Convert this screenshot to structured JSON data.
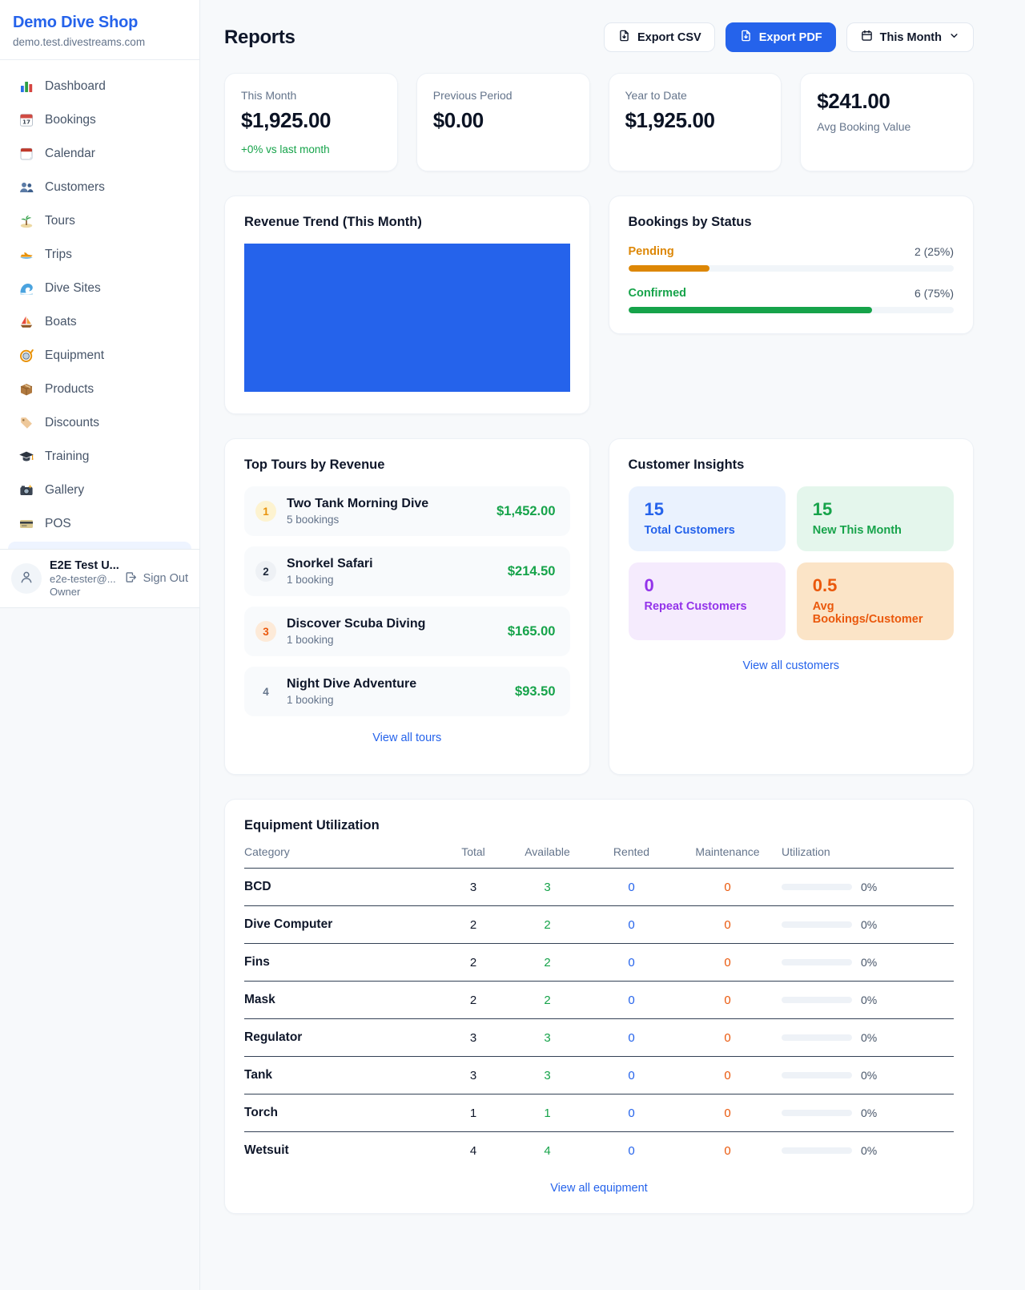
{
  "colors": {
    "brand_accent": "#2563eb",
    "chart_bar_blue": "#2563eb",
    "pending_orange": "#dd8706",
    "confirmed_green": "#16a34a",
    "revenue_green": "#16a34a",
    "link_blue": "#2563eb"
  },
  "sidebar": {
    "brand": "Demo Dive Shop",
    "domain": "demo.test.divestreams.com",
    "items": [
      {
        "label": "Dashboard",
        "icon": "bar-chart"
      },
      {
        "label": "Bookings",
        "icon": "calendar-date"
      },
      {
        "label": "Calendar",
        "icon": "calendar-pad"
      },
      {
        "label": "Customers",
        "icon": "users"
      },
      {
        "label": "Tours",
        "icon": "island"
      },
      {
        "label": "Trips",
        "icon": "speedboat"
      },
      {
        "label": "Dive Sites",
        "icon": "wave"
      },
      {
        "label": "Boats",
        "icon": "sailboat"
      },
      {
        "label": "Equipment",
        "icon": "dive-mask"
      },
      {
        "label": "Products",
        "icon": "box"
      },
      {
        "label": "Discounts",
        "icon": "tag"
      },
      {
        "label": "Training",
        "icon": "grad-cap"
      },
      {
        "label": "Gallery",
        "icon": "camera"
      },
      {
        "label": "POS",
        "icon": "credit-card"
      }
    ],
    "user": {
      "name": "E2E Test U...",
      "email": "e2e-tester@...",
      "role": "Owner",
      "signout_label": "Sign Out"
    }
  },
  "header": {
    "title": "Reports",
    "export_csv_label": "Export CSV",
    "export_pdf_label": "Export PDF",
    "period_label": "This Month"
  },
  "stats": [
    {
      "label": "This Month",
      "value": "$1,925.00",
      "note": "+0% vs last month",
      "value_first": false
    },
    {
      "label": "Previous Period",
      "value": "$0.00",
      "note": "",
      "value_first": false
    },
    {
      "label": "Year to Date",
      "value": "$1,925.00",
      "note": "",
      "value_first": false
    },
    {
      "label": "Avg Booking Value",
      "value": "$241.00",
      "note": "",
      "value_first": true
    }
  ],
  "revenue_trend": {
    "title": "Revenue Trend (This Month)"
  },
  "bookings_by_status": {
    "title": "Bookings by Status",
    "rows": [
      {
        "label": "Pending",
        "count": "2 (25%)",
        "pct": 25,
        "color": "#dd8706"
      },
      {
        "label": "Confirmed",
        "count": "6 (75%)",
        "pct": 75,
        "color": "#16a34a"
      }
    ]
  },
  "top_tours": {
    "title": "Top Tours by Revenue",
    "link": "View all tours",
    "items": [
      {
        "rank": "1",
        "name": "Two Tank Morning Dive",
        "bookings": "5 bookings",
        "amount": "$1,452.00"
      },
      {
        "rank": "2",
        "name": "Snorkel Safari",
        "bookings": "1 booking",
        "amount": "$214.50"
      },
      {
        "rank": "3",
        "name": "Discover Scuba Diving",
        "bookings": "1 booking",
        "amount": "$165.00"
      },
      {
        "rank": "4",
        "name": "Night Dive Adventure",
        "bookings": "1 booking",
        "amount": "$93.50"
      }
    ]
  },
  "customer_insights": {
    "title": "Customer Insights",
    "link": "View all customers",
    "boxes": [
      {
        "value": "15",
        "label": "Total Customers",
        "scheme": "blue"
      },
      {
        "value": "15",
        "label": "New This Month",
        "scheme": "green"
      },
      {
        "value": "0",
        "label": "Repeat Customers",
        "scheme": "purple"
      },
      {
        "value": "0.5",
        "label": "Avg Bookings/Customer",
        "scheme": "orange"
      }
    ]
  },
  "equipment": {
    "title": "Equipment Utilization",
    "link": "View all equipment",
    "columns": [
      "Category",
      "Total",
      "Available",
      "Rented",
      "Maintenance",
      "Utilization"
    ],
    "rows": [
      {
        "category": "BCD",
        "total": "3",
        "available": "3",
        "rented": "0",
        "maintenance": "0",
        "utilization": "0%",
        "bar_pct": 0
      },
      {
        "category": "Dive Computer",
        "total": "2",
        "available": "2",
        "rented": "0",
        "maintenance": "0",
        "utilization": "0%",
        "bar_pct": 0
      },
      {
        "category": "Fins",
        "total": "2",
        "available": "2",
        "rented": "0",
        "maintenance": "0",
        "utilization": "0%",
        "bar_pct": 0
      },
      {
        "category": "Mask",
        "total": "2",
        "available": "2",
        "rented": "0",
        "maintenance": "0",
        "utilization": "0%",
        "bar_pct": 0
      },
      {
        "category": "Regulator",
        "total": "3",
        "available": "3",
        "rented": "0",
        "maintenance": "0",
        "utilization": "0%",
        "bar_pct": 0
      },
      {
        "category": "Tank",
        "total": "3",
        "available": "3",
        "rented": "0",
        "maintenance": "0",
        "utilization": "0%",
        "bar_pct": 0
      },
      {
        "category": "Torch",
        "total": "1",
        "available": "1",
        "rented": "0",
        "maintenance": "0",
        "utilization": "0%",
        "bar_pct": 0
      },
      {
        "category": "Wetsuit",
        "total": "4",
        "available": "4",
        "rented": "0",
        "maintenance": "0",
        "utilization": "0%",
        "bar_pct": 0
      }
    ]
  },
  "chart_data": [
    {
      "type": "bar",
      "title": "Revenue Trend (This Month)",
      "categories": [
        "This Month"
      ],
      "values": [
        1925
      ],
      "xlabel": "",
      "ylabel": "",
      "notes": "rendered as a single solid blue block filling the plot area; no axes, ticks or labels visible"
    },
    {
      "type": "bar",
      "title": "Bookings by Status",
      "categories": [
        "Pending",
        "Confirmed"
      ],
      "values": [
        2,
        6
      ],
      "value_labels": [
        "2 (25%)",
        "6 (75%)"
      ],
      "percent": [
        25,
        75
      ],
      "colors": [
        "#dd8706",
        "#16a34a"
      ],
      "notes": "horizontal progress bars on light gray tracks"
    }
  ]
}
